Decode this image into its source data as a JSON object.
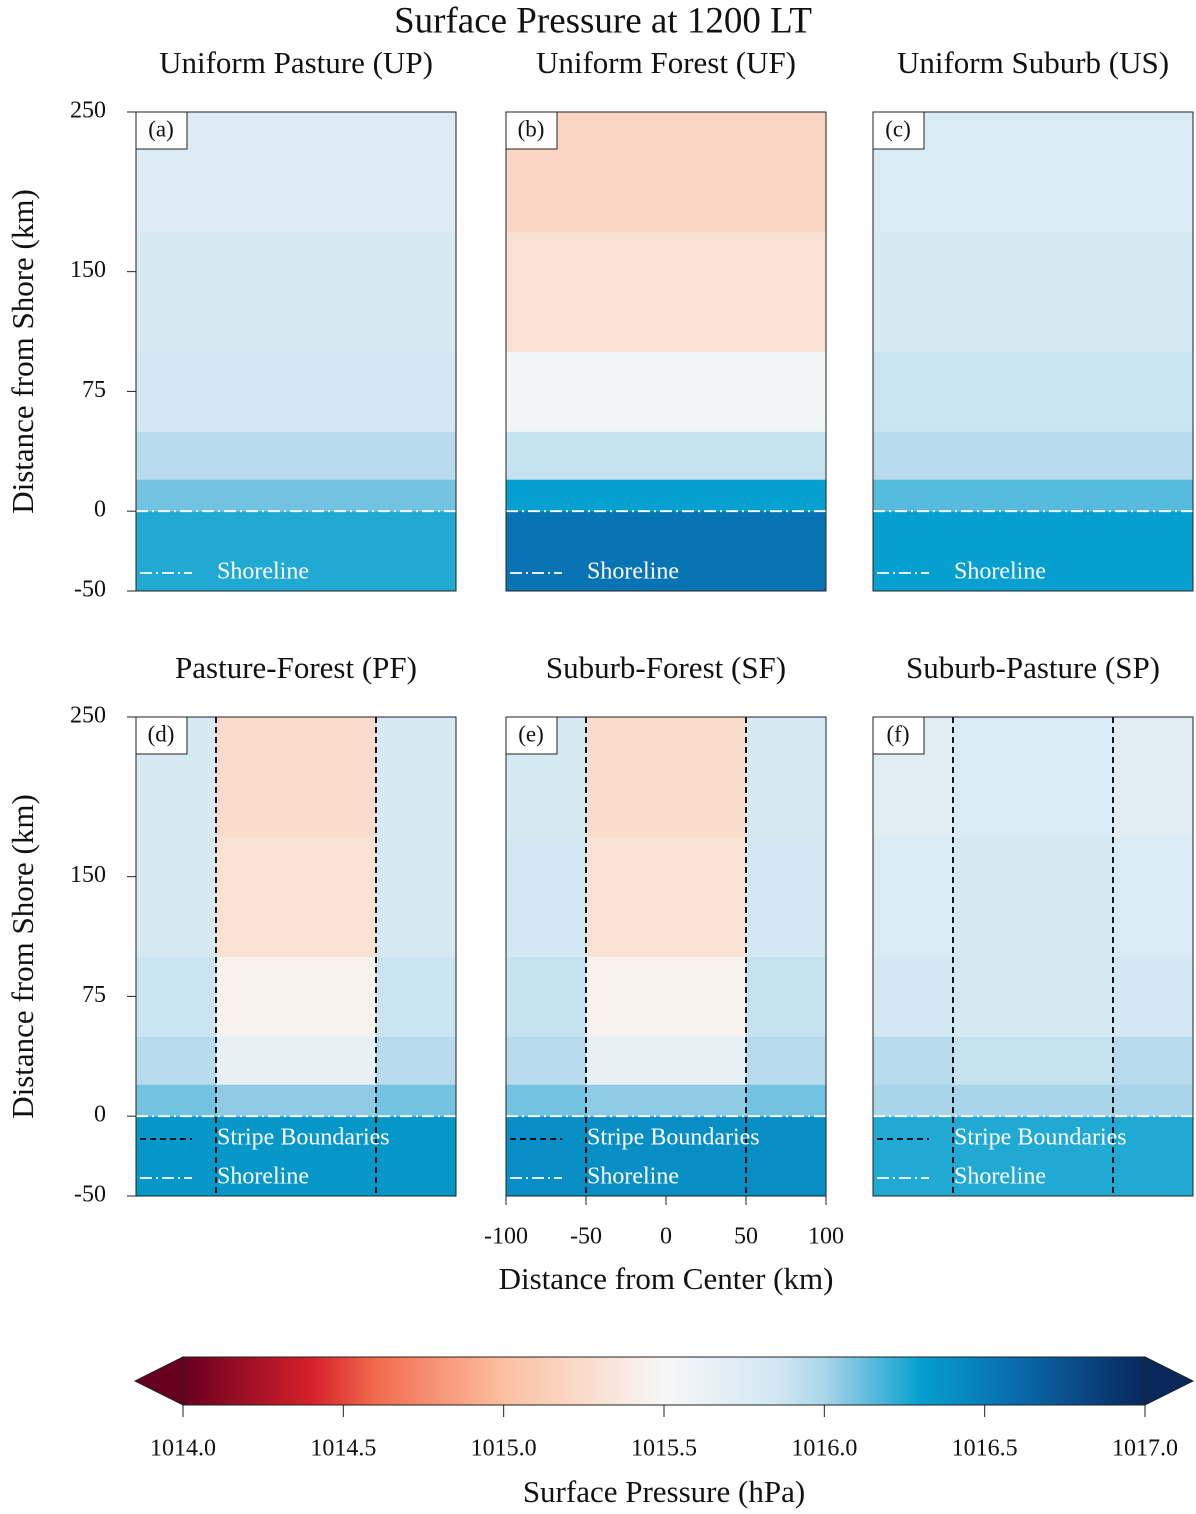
{
  "title": "Surface Pressure at 1200 LT",
  "chart_data": [
    {
      "type": "heatmap",
      "title": "Uniform Pasture (UP)",
      "panel_label": "(a)",
      "xbins": [
        -100,
        100
      ],
      "ybins": [
        -50,
        0,
        20,
        50,
        100,
        175,
        250
      ],
      "values": [
        [
          1016.25
        ],
        [
          1016.1
        ],
        [
          1015.95
        ],
        [
          1015.85
        ],
        [
          1015.8
        ],
        [
          1015.75
        ]
      ],
      "xlim": [
        -100,
        100
      ],
      "ylim": [
        -50,
        250
      ],
      "yticks": [
        -50,
        0,
        75,
        150,
        250
      ],
      "ylabel": "Distance from Shore (km)",
      "lines": [
        {
          "name": "Shoreline",
          "style": "dashdot",
          "color": "#ffffff",
          "y": 0
        }
      ]
    },
    {
      "type": "heatmap",
      "title": "Uniform Forest (UF)",
      "panel_label": "(b)",
      "xbins": [
        -100,
        100
      ],
      "ybins": [
        -50,
        0,
        20,
        50,
        100,
        175,
        250
      ],
      "values": [
        [
          1016.55
        ],
        [
          1016.3
        ],
        [
          1015.9
        ],
        [
          1015.55
        ],
        [
          1015.3
        ],
        [
          1015.2
        ]
      ],
      "xlim": [
        -100,
        100
      ],
      "ylim": [
        -50,
        250
      ],
      "lines": [
        {
          "name": "Shoreline",
          "style": "dashdot",
          "color": "#ffffff",
          "y": 0
        }
      ]
    },
    {
      "type": "heatmap",
      "title": "Uniform Suburb (US)",
      "panel_label": "(c)",
      "xbins": [
        -100,
        100
      ],
      "ybins": [
        -50,
        0,
        20,
        50,
        100,
        175,
        250
      ],
      "values": [
        [
          1016.3
        ],
        [
          1016.15
        ],
        [
          1015.95
        ],
        [
          1015.88
        ],
        [
          1015.82
        ],
        [
          1015.78
        ]
      ],
      "xlim": [
        -100,
        100
      ],
      "ylim": [
        -50,
        250
      ],
      "lines": [
        {
          "name": "Shoreline",
          "style": "dashdot",
          "color": "#ffffff",
          "y": 0
        }
      ]
    },
    {
      "type": "heatmap",
      "title": "Pasture-Forest (PF)",
      "panel_label": "(d)",
      "xbins": [
        -100,
        -50,
        50,
        100
      ],
      "ybins": [
        -50,
        0,
        20,
        50,
        100,
        175,
        250
      ],
      "values": [
        [
          1016.35,
          1016.35,
          1016.35
        ],
        [
          1016.1,
          1016.05,
          1016.1
        ],
        [
          1015.95,
          1015.65,
          1015.95
        ],
        [
          1015.88,
          1015.45,
          1015.88
        ],
        [
          1015.82,
          1015.3,
          1015.82
        ],
        [
          1015.8,
          1015.25,
          1015.8
        ]
      ],
      "xlim": [
        -100,
        100
      ],
      "ylim": [
        -50,
        250
      ],
      "yticks": [
        -50,
        0,
        75,
        150,
        250
      ],
      "ylabel": "Distance from Shore (km)",
      "lines": [
        {
          "name": "Stripe Boundaries",
          "style": "dashed",
          "color": "#000000",
          "x": [
            -50,
            50
          ]
        },
        {
          "name": "Shoreline",
          "style": "dashdot",
          "color": "#ffffff",
          "y": 0
        }
      ]
    },
    {
      "type": "heatmap",
      "title": "Suburb-Forest (SF)",
      "panel_label": "(e)",
      "xbins": [
        -100,
        -50,
        50,
        100
      ],
      "ybins": [
        -50,
        0,
        20,
        50,
        100,
        175,
        250
      ],
      "values": [
        [
          1016.4,
          1016.4,
          1016.4
        ],
        [
          1016.1,
          1016.05,
          1016.1
        ],
        [
          1015.95,
          1015.65,
          1015.95
        ],
        [
          1015.9,
          1015.45,
          1015.9
        ],
        [
          1015.85,
          1015.3,
          1015.85
        ],
        [
          1015.82,
          1015.25,
          1015.82
        ]
      ],
      "xlim": [
        -100,
        100
      ],
      "ylim": [
        -50,
        250
      ],
      "xticks": [
        -100,
        -50,
        0,
        50,
        100
      ],
      "xlabel": "Distance from Center (km)",
      "lines": [
        {
          "name": "Stripe Boundaries",
          "style": "dashed",
          "color": "#000000",
          "x": [
            -50,
            50
          ]
        },
        {
          "name": "Shoreline",
          "style": "dashdot",
          "color": "#ffffff",
          "y": 0
        }
      ]
    },
    {
      "type": "heatmap",
      "title": "Suburb-Pasture (SP)",
      "panel_label": "(f)",
      "xbins": [
        -100,
        -50,
        50,
        100
      ],
      "ybins": [
        -50,
        0,
        20,
        50,
        100,
        175,
        250
      ],
      "values": [
        [
          1016.25,
          1016.25,
          1016.25
        ],
        [
          1016.0,
          1016.0,
          1016.0
        ],
        [
          1015.95,
          1015.9,
          1015.95
        ],
        [
          1015.85,
          1015.82,
          1015.85
        ],
        [
          1015.78,
          1015.8,
          1015.78
        ],
        [
          1015.72,
          1015.78,
          1015.72
        ]
      ],
      "xlim": [
        -100,
        100
      ],
      "ylim": [
        -50,
        250
      ],
      "lines": [
        {
          "name": "Stripe Boundaries",
          "style": "dashed",
          "color": "#000000",
          "x": [
            -50,
            50
          ]
        },
        {
          "name": "Shoreline",
          "style": "dashdot",
          "color": "#ffffff",
          "y": 0
        }
      ]
    }
  ],
  "colorbar": {
    "label": "Surface Pressure (hPa)",
    "lim": [
      1014,
      1017
    ],
    "extend": "both",
    "ticks": [
      {
        "value": 1014,
        "label": "1014.0"
      },
      {
        "value": 1014.5,
        "label": "1014.5"
      },
      {
        "value": 1015,
        "label": "1015.0"
      },
      {
        "value": 1015.5,
        "label": "1015.5"
      },
      {
        "value": 1016,
        "label": "1016.0"
      },
      {
        "value": 1016.5,
        "label": "1016.5"
      },
      {
        "value": 1017,
        "label": "1017.0"
      }
    ],
    "stops": [
      {
        "value": 1014,
        "color": "#67001f"
      },
      {
        "value": 1014.4,
        "color": "#d6202b"
      },
      {
        "value": 1014.6,
        "color": "#f26a4d"
      },
      {
        "value": 1015,
        "color": "#fbc0a0"
      },
      {
        "value": 1015.5,
        "color": "#f7f7f7"
      },
      {
        "value": 1015.85,
        "color": "#d2e8f3"
      },
      {
        "value": 1016,
        "color": "#a9d5ea"
      },
      {
        "value": 1016.3,
        "color": "#05a0cf"
      },
      {
        "value": 1016.6,
        "color": "#0a6bad"
      },
      {
        "value": 1017,
        "color": "#08285c"
      }
    ]
  }
}
